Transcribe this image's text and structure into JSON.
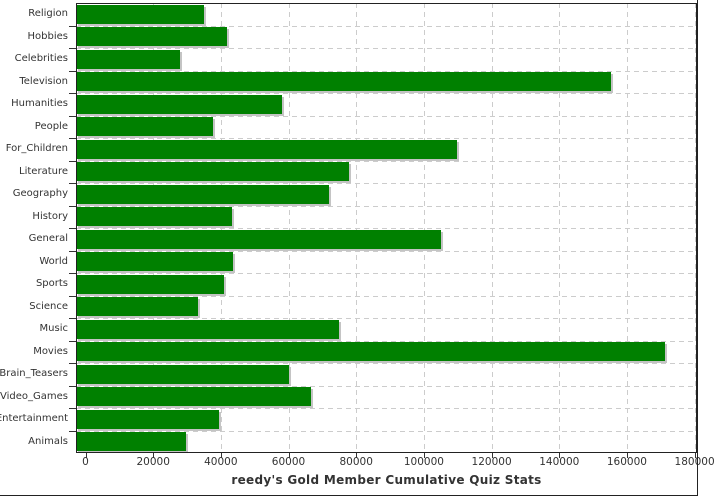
{
  "chart_data": {
    "type": "bar",
    "orientation": "horizontal",
    "title": "reedy's Gold Member Cumulative Quiz Stats",
    "categories": [
      "Religion",
      "Hobbies",
      "Celebrities",
      "Television",
      "Humanities",
      "People",
      "For_Children",
      "Literature",
      "Geography",
      "History",
      "General",
      "World",
      "Sports",
      "Science",
      "Music",
      "Movies",
      "Brain_Teasers",
      "Video_Games",
      "Entertainment",
      "Animals"
    ],
    "values": [
      35100,
      41900,
      27900,
      155400,
      58100,
      37700,
      109700,
      77900,
      71900,
      43300,
      105000,
      43500,
      40900,
      33300,
      75000,
      171200,
      60200,
      66700,
      39400,
      29800
    ],
    "x_ticks": [
      0,
      20000,
      40000,
      60000,
      80000,
      100000,
      120000,
      140000,
      160000,
      180000
    ],
    "x_tick_labels": [
      "0",
      "20000",
      "40000",
      "60000",
      "80000",
      "100000",
      "120000",
      "140000",
      "160000",
      "180000"
    ],
    "xlim": [
      -2800,
      180700
    ],
    "grid": true,
    "legend": false,
    "colors": {
      "bar": "#008000",
      "bar_shadow": "#c4c4c4",
      "grid": "#cccccc",
      "axis": "#222222",
      "text": "#333333"
    }
  }
}
